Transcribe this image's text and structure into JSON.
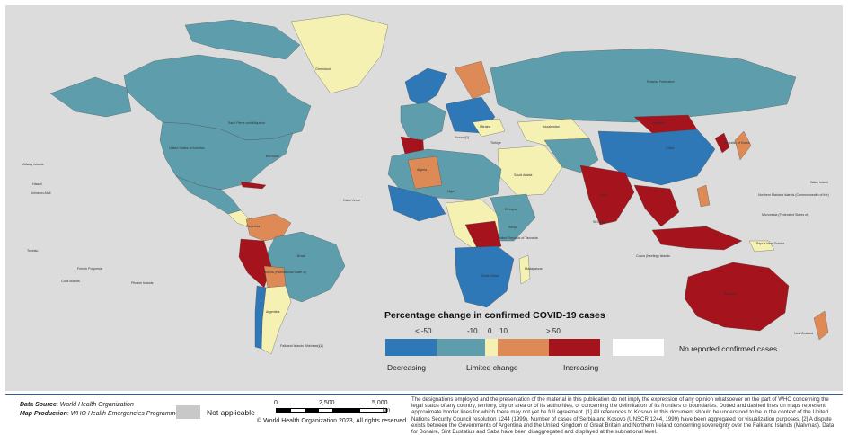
{
  "legend": {
    "title": "Percentage change in confirmed COVID-19 cases",
    "ticks": [
      "< -50",
      "-10",
      "0",
      "10",
      "> 50"
    ],
    "bins": [
      {
        "name": "decreasing-strong",
        "color": "#2e78b7"
      },
      {
        "name": "limited-negative",
        "color": "#5e9eac"
      },
      {
        "name": "limited-positive",
        "color": "#f5f1b2"
      },
      {
        "name": "increasing-moderate",
        "color": "#dd8a57"
      },
      {
        "name": "increasing-strong",
        "color": "#a5141c"
      }
    ],
    "captions": {
      "decreasing": "Decreasing",
      "limited": "Limited change",
      "increasing": "Increasing"
    },
    "no_reported": "No reported confirmed cases"
  },
  "colors": {
    "ocean": "#dcdcdc",
    "no_data": "#ffffff",
    "not_applicable": "#c8c8c8",
    "border": "#2b5f9e"
  },
  "map_labels": {
    "greenland": "Greenland",
    "usa": "United States of America",
    "bermuda": "Bermuda",
    "canada": "Canada",
    "russia": "Russian Federation",
    "china": "China",
    "korea": "Republic of Korea",
    "japan": "Japan",
    "india": "India",
    "brazil": "Brazil",
    "argentina": "Argentina",
    "bolivia": "Bolivia (Plurinational State of)",
    "peru": "Peru",
    "colombia": "Colombia",
    "south_africa": "South Africa",
    "saudi": "Saudi Arabia",
    "kazakhstan": "Kazakhstan",
    "mongolia": "Mongolia",
    "australia": "Australia",
    "nz": "New Zealand",
    "png": "Papua New Guinea",
    "hawaii": "Hawaii",
    "midway": "Midway Islands",
    "johnston": "Johnston Atoll",
    "tokelau": "Tokelau",
    "cook": "Cook Islands",
    "pitcairn": "Pitcairn Islands",
    "polynesia": "French Polynesia",
    "stpierre": "Saint Pierre and Miquelon",
    "cabo": "Cabo Verde",
    "falkland": "Falkland Islands (Malvinas)[1]",
    "nmi": "Northern Mariana Islands (Commonwealth of the)",
    "wake": "Wake Island",
    "micronesia": "Micronesia (Federated States of)",
    "cocos": "Cocos (Keeling) Islands",
    "sri": "Sri Lanka",
    "algeria": "Algeria",
    "niger": "Niger",
    "ethiopia": "Ethiopia",
    "kenya": "Kenya",
    "tanzania": "United Republic of Tanzania",
    "madagascar": "Madagascar",
    "turkiye": "Türkiye",
    "ukraine": "Ukraine",
    "kosovo": "Kosovo[1]"
  },
  "footer": {
    "data_source_label": "Data Source",
    "data_source": "World Health Organization",
    "map_production_label": "Map Production",
    "map_production": "WHO Health Emergencies Programme",
    "not_applicable": "Not applicable",
    "scale": [
      "0",
      "2,500",
      "5,000"
    ],
    "scale_unit": "km",
    "copyright": "© World Health Organization 2023, All rights reserved.",
    "disclaimer": "The designations employed and the presentation of the material in this publication do not imply the expression of any opinion whatsoever on the part of WHO concerning the legal status of any country, territory, city or area or of its authorities, or concerning the delimitation of its frontiers or boundaries. Dotted and dashed lines on maps represent approximate border lines for which there may not yet be full agreement. [1] All references to Kosovo in this document should be understood to be in the context of the United Nations Security Council resolution 1244 (1999). Number of cases of Serbia and Kosovo (UNSCR 1244, 1999) have been aggregated for visualization purposes. [2] A dispute exists between the Governments of Argentina and the United Kingdom of Great Britain and Northern Ireland concerning sovereignty over the Falkland Islands (Malvinas). Data for Bonaire, Sint Eustatius and Saba have been disaggregated and displayed at the subnational level."
  }
}
